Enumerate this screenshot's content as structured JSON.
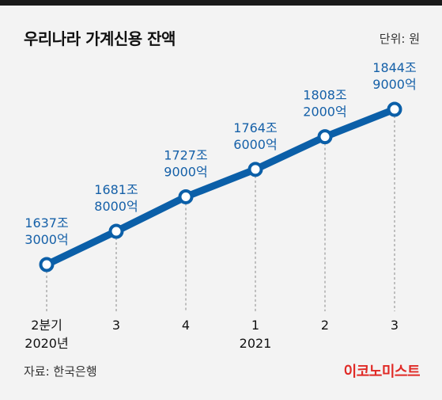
{
  "header": {
    "title": "우리나라 가계신용 잔액",
    "unit": "단위: 원"
  },
  "footer": {
    "source": "자료: 한국은행",
    "brand": "이코노미스트"
  },
  "colors": {
    "line": "#0b5fa8",
    "label": "#1560a8",
    "background": "#f3f3f3"
  },
  "chart_data": {
    "type": "line",
    "categories": [
      "2분기",
      "3",
      "4",
      "1",
      "2",
      "3"
    ],
    "year_labels": [
      "2020년",
      "",
      "",
      "2021",
      "",
      ""
    ],
    "values_trillion_won": [
      1637.3,
      1681.8,
      1727.9,
      1764.6,
      1808.2,
      1844.9
    ],
    "value_labels": [
      [
        "1637조",
        "3000억"
      ],
      [
        "1681조",
        "8000억"
      ],
      [
        "1727조",
        "9000억"
      ],
      [
        "1764조",
        "6000억"
      ],
      [
        "1808조",
        "2000억"
      ],
      [
        "1844조",
        "9000억"
      ]
    ],
    "grid": "vertical dashed guides"
  }
}
